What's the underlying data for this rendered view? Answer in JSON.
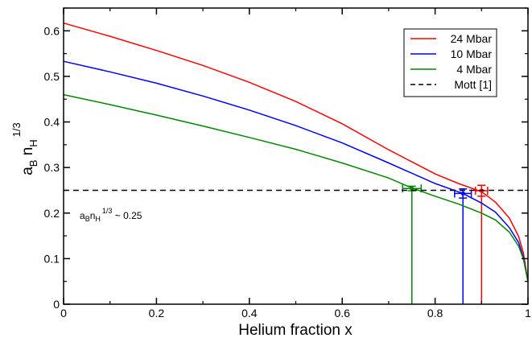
{
  "chart_data": {
    "type": "line",
    "xlabel": "Helium fraction x",
    "ylabel": {
      "base": "a",
      "sub1": "B",
      "mid": " n",
      "sub2": "H",
      "sup": "1/3"
    },
    "xlim": [
      0,
      1
    ],
    "ylim": [
      0,
      0.65
    ],
    "x_ticks": [
      0,
      0.2,
      0.4,
      0.6,
      0.8,
      1
    ],
    "x_tick_labels": [
      "0",
      "0.2",
      "0.4",
      "0.6",
      "0.8",
      "1"
    ],
    "y_ticks": [
      0,
      0.1,
      0.2,
      0.3,
      0.4,
      0.5,
      0.6
    ],
    "y_tick_labels": [
      "0",
      "0.1",
      "0.2",
      "0.3",
      "0.4",
      "0.5",
      "0.6"
    ],
    "grid": false,
    "legend_position": "top-right",
    "series": [
      {
        "name": "24 Mbar",
        "color": "#ff0000",
        "x": [
          0,
          0.1,
          0.2,
          0.3,
          0.4,
          0.5,
          0.6,
          0.7,
          0.8,
          0.85,
          0.9,
          0.93,
          0.96,
          0.98,
          0.99,
          1.0
        ],
        "y": [
          0.617,
          0.588,
          0.557,
          0.524,
          0.487,
          0.445,
          0.396,
          0.339,
          0.286,
          0.265,
          0.247,
          0.224,
          0.189,
          0.148,
          0.113,
          0.05
        ],
        "errorbar": {
          "x": 0.9,
          "y": 0.249,
          "xerr": 0.013,
          "yerr": 0.012
        },
        "drop_line_x": 0.9
      },
      {
        "name": "10 Mbar",
        "color": "#0000ff",
        "x": [
          0,
          0.1,
          0.2,
          0.3,
          0.4,
          0.5,
          0.6,
          0.7,
          0.8,
          0.86,
          0.9,
          0.93,
          0.96,
          0.98,
          0.99,
          1.0
        ],
        "y": [
          0.533,
          0.51,
          0.485,
          0.457,
          0.426,
          0.392,
          0.354,
          0.31,
          0.265,
          0.243,
          0.222,
          0.202,
          0.168,
          0.135,
          0.103,
          0.05
        ],
        "errorbar": {
          "x": 0.86,
          "y": 0.243,
          "xerr": 0.018,
          "yerr": 0.01
        },
        "drop_line_x": 0.86
      },
      {
        "name": "4 Mbar",
        "color": "#008800",
        "x": [
          0,
          0.1,
          0.2,
          0.3,
          0.4,
          0.5,
          0.6,
          0.7,
          0.75,
          0.8,
          0.85,
          0.9,
          0.93,
          0.96,
          0.98,
          0.99,
          1.0
        ],
        "y": [
          0.46,
          0.438,
          0.415,
          0.391,
          0.366,
          0.34,
          0.31,
          0.277,
          0.255,
          0.237,
          0.22,
          0.2,
          0.185,
          0.158,
          0.127,
          0.1,
          0.05
        ],
        "errorbar": {
          "x": 0.75,
          "y": 0.254,
          "xerr": 0.02,
          "yerr": 0.005
        },
        "drop_line_x": 0.75
      },
      {
        "name": "Mott [1]",
        "color": "#000000",
        "dashed": true,
        "x": [
          0,
          1
        ],
        "y": [
          0.25,
          0.25
        ]
      }
    ],
    "annotation": {
      "text": {
        "base": "a",
        "sub1": "B",
        "mid": "n",
        "sub2": "H",
        "sup": "1/3",
        "tail": " ~ 0.25"
      },
      "x": 0.02,
      "y": 0.22
    }
  }
}
